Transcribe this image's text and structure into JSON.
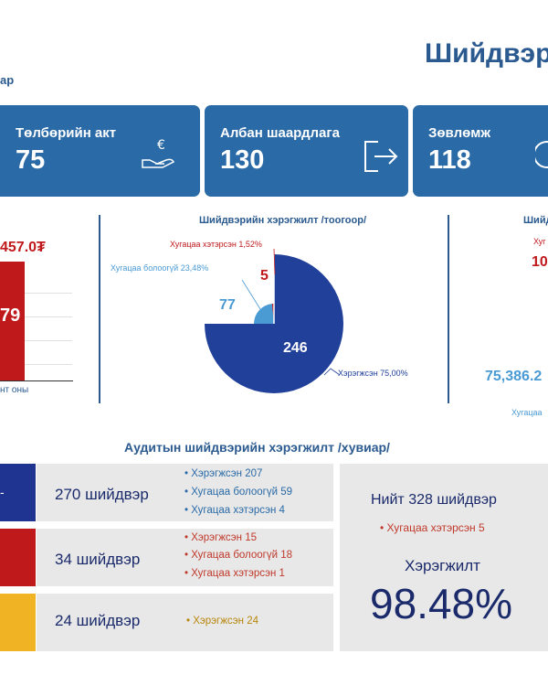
{
  "header": {
    "title": "Шийдвэр",
    "subtitle_fragment": "ар"
  },
  "cards": [
    {
      "label": "Төлбөрийн акт",
      "value": "75",
      "icon": "hand-euro-icon"
    },
    {
      "label": "Албан шаардлага",
      "value": "130",
      "icon": "exit-arrow-icon"
    },
    {
      "label": "Зөвлөмж",
      "value": "118",
      "icon": "refresh-icon"
    }
  ],
  "left_chart": {
    "amount_label": "457.0₮",
    "bar_value": "79",
    "axis_label": "нт оны",
    "bar_color": "#c0191c"
  },
  "pie_chart": {
    "title": "Шийдвэрийн хэрэгжилт /тоогоор/",
    "legend": {
      "overdue": "Хугацаа хэтэрсэн 1,52%",
      "not_due": "Хугацаа болоогүй 23,48%",
      "implemented": "Хэрэгжсэн 75,00%"
    },
    "labels": {
      "overdue": "5",
      "not_due": "77",
      "implemented": "246"
    }
  },
  "chart_data": {
    "type": "pie",
    "title": "Шийдвэрийн хэрэгжилт /тоогоор/",
    "slices": [
      {
        "name": "Хэрэгжсэн",
        "value": 246,
        "percent": 75.0,
        "color": "#21409a"
      },
      {
        "name": "Хугацаа болоогүй",
        "value": 77,
        "percent": 23.48,
        "color": "#4a9ad4"
      },
      {
        "name": "Хугацаа хэтэрсэн",
        "value": 5,
        "percent": 1.52,
        "color": "#c0191c"
      }
    ]
  },
  "right_chart": {
    "title": "Шийд",
    "label_top": "Хуг",
    "value_top": "10",
    "value_bottom": "75,386.2",
    "label_bottom": "Хугацаа"
  },
  "section_title": "Аудитын шийдвэрийн хэрэгжилт /хувиар/",
  "rows": [
    {
      "label": "270 шийдвэр",
      "color": "#1f3391",
      "text_color": "#2a6aa6",
      "items": [
        "Хэрэгжсэн  207",
        "Хугацаа болоогүй  59",
        "Хугацаа хэтэрсэн  4"
      ]
    },
    {
      "label": "34 шийдвэр",
      "color": "#c0191c",
      "text_color": "#c0392b",
      "items": [
        "Хэрэгжсэн  15",
        "Хугацаа болоогүй  18",
        "Хугацаа хэтэрсэн  1"
      ]
    },
    {
      "label": "24 шийдвэр",
      "color": "#f0b323",
      "text_color": "#b8860b",
      "items": [
        "Хэрэгжсэн  24"
      ]
    }
  ],
  "summary": {
    "total": "Нийт 328 шийдвэр",
    "overdue": "Хугацаа хэтэрсэн  5",
    "impl_label": "Хэрэгжилт",
    "impl_value": "98.48%"
  }
}
